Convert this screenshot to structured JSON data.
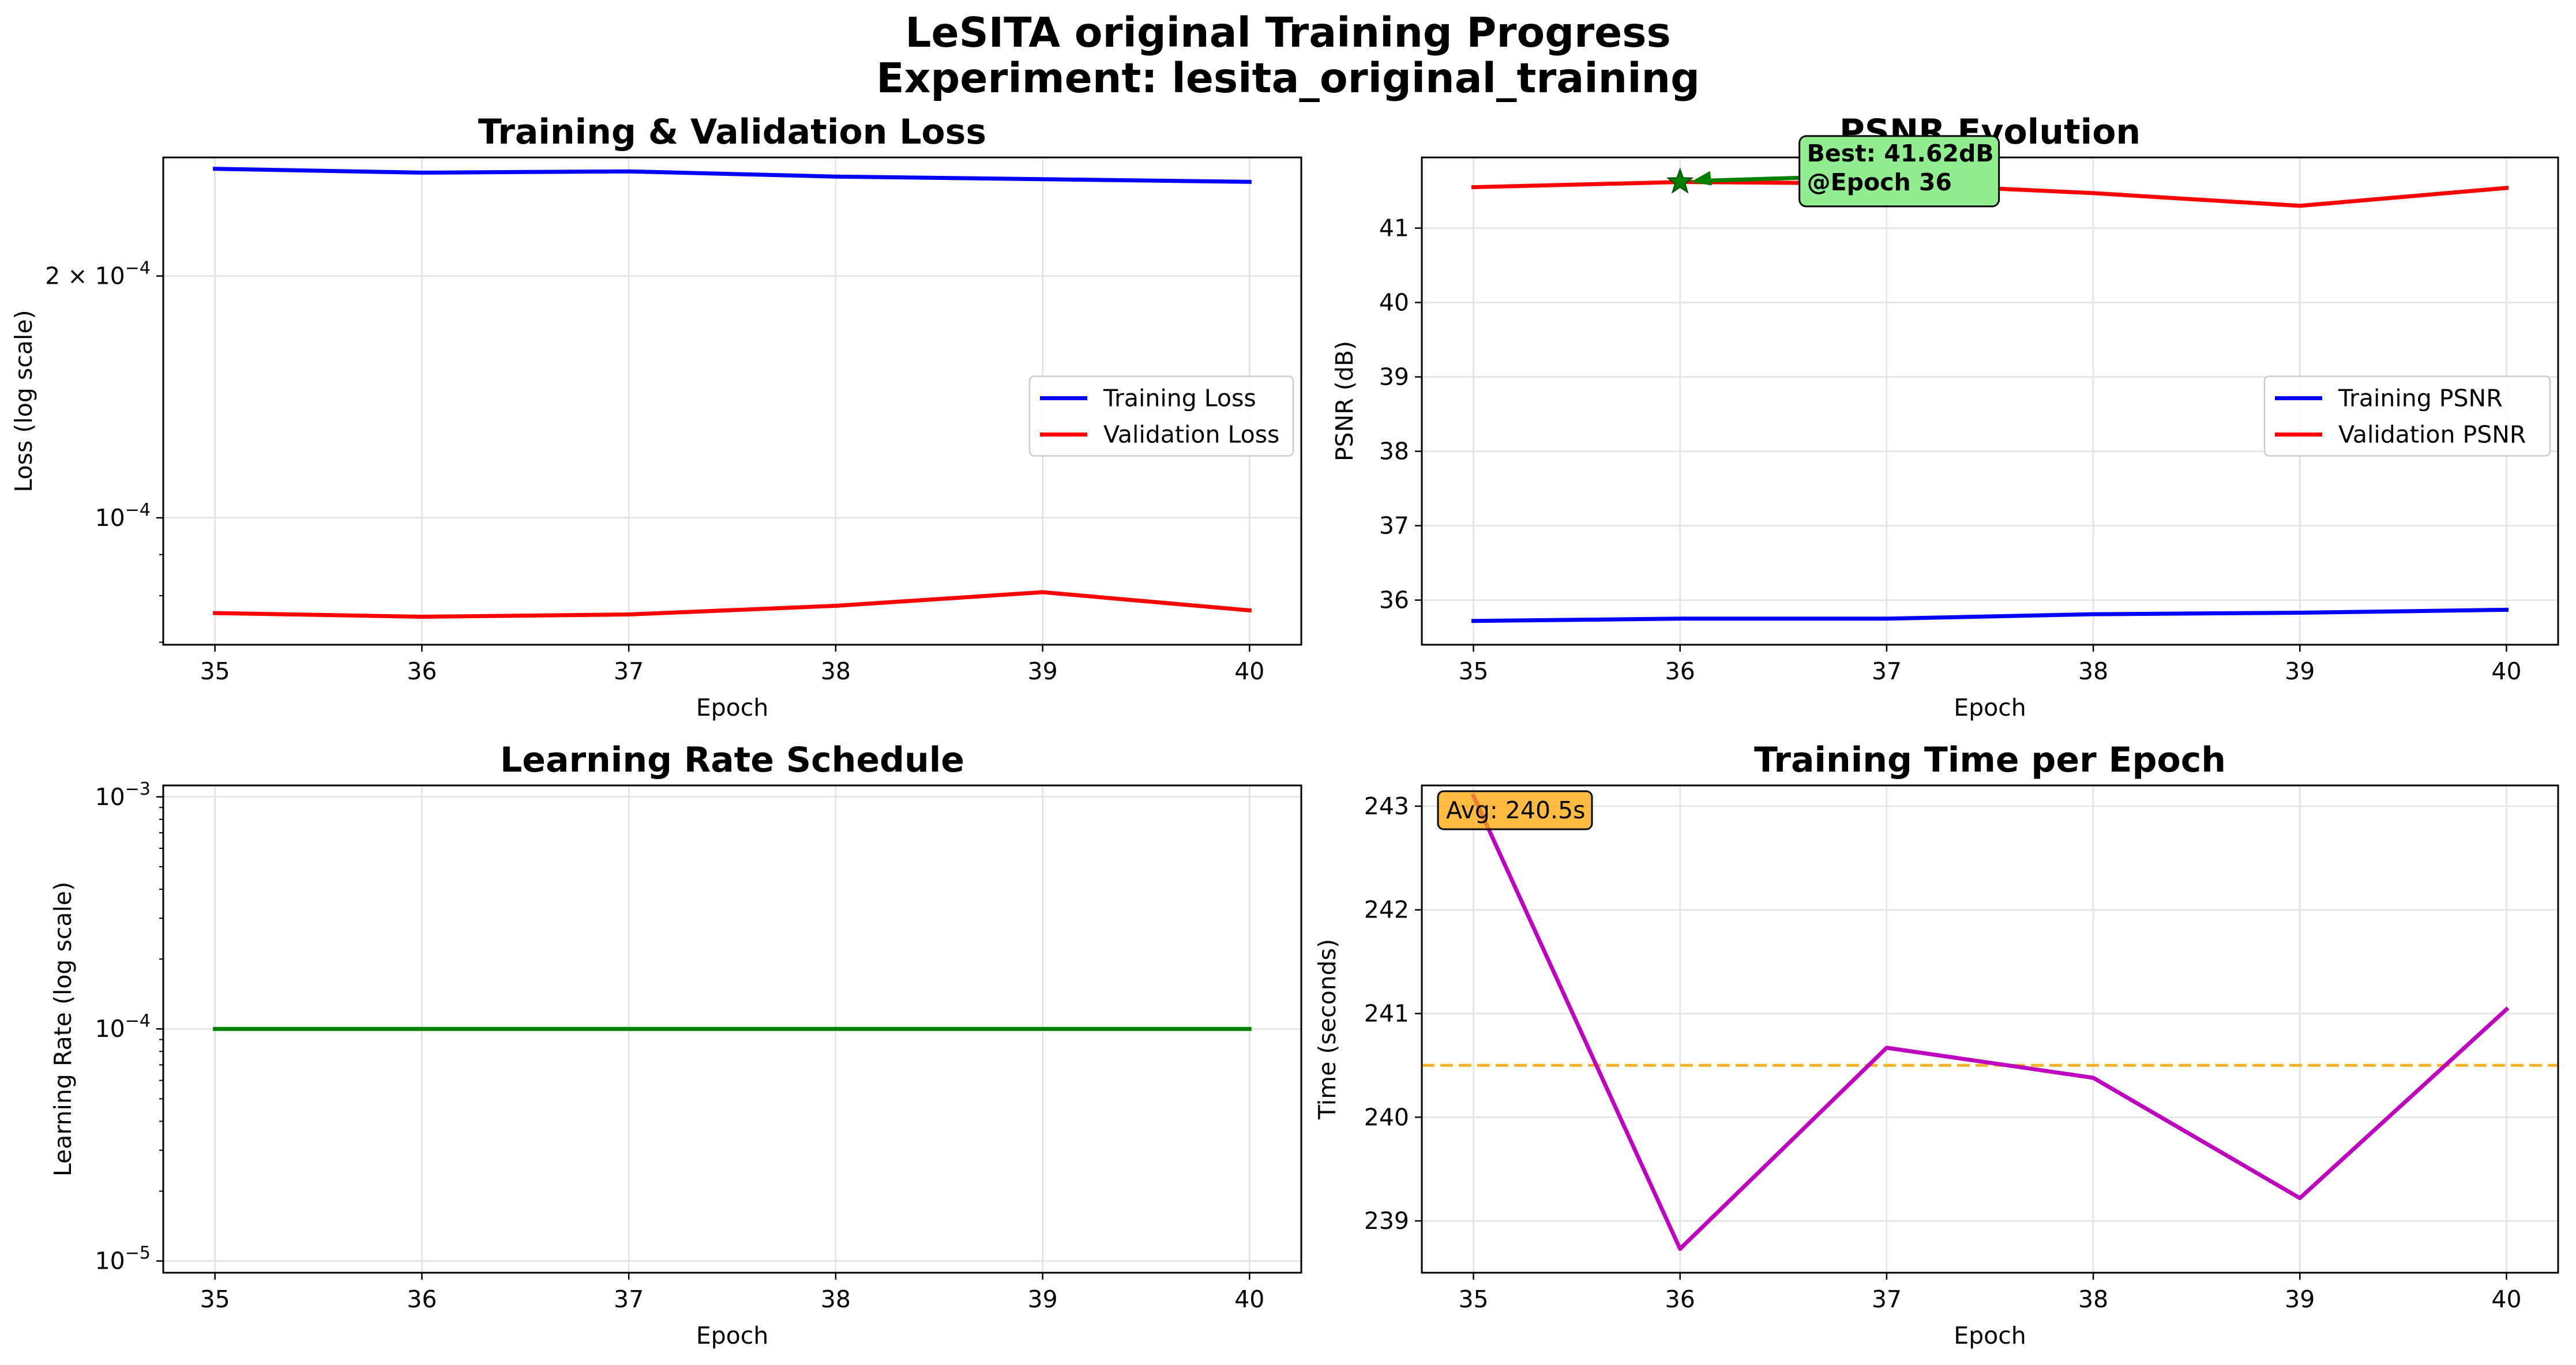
{
  "suptitle": [
    "LeSITA original Training Progress",
    "Experiment: lesita_original_training"
  ],
  "chart_data": [
    {
      "id": "loss",
      "type": "line",
      "title": "Training & Validation Loss",
      "xlabel": "Epoch",
      "ylabel": "Loss (log scale)",
      "yscale": "log",
      "xlim": [
        34.75,
        40.25
      ],
      "ylim": [
        6.95e-05,
        0.000281
      ],
      "grid": true,
      "legend": "center-right",
      "x": [
        35,
        36,
        37,
        38,
        39,
        40
      ],
      "xticks": [
        {
          "v": 35,
          "label": "35"
        },
        {
          "v": 36,
          "label": "36"
        },
        {
          "v": 37,
          "label": "37"
        },
        {
          "v": 38,
          "label": "38"
        },
        {
          "v": 39,
          "label": "39"
        },
        {
          "v": 40,
          "label": "40"
        }
      ],
      "yticks": [
        {
          "v": 0.0002,
          "base": "2 × 10",
          "exp": "−4"
        },
        {
          "v": 0.0001,
          "base": "10",
          "exp": "−4"
        }
      ],
      "yminor": [
        7e-05,
        8e-05,
        9e-05,
        0.0003
      ],
      "series": [
        {
          "name": "Training Loss",
          "color": "#0000ff",
          "values": [
            0.000272,
            0.000269,
            0.00027,
            0.000266,
            0.000264,
            0.000262
          ]
        },
        {
          "name": "Validation Loss",
          "color": "#ff0000",
          "values": [
            7.61e-05,
            7.53e-05,
            7.58e-05,
            7.77e-05,
            8.08e-05,
            7.67e-05
          ]
        }
      ]
    },
    {
      "id": "psnr",
      "type": "line",
      "title": "PSNR Evolution",
      "xlabel": "Epoch",
      "ylabel": "PSNR (dB)",
      "yscale": "linear",
      "xlim": [
        34.75,
        40.25
      ],
      "ylim": [
        35.4,
        41.95
      ],
      "grid": true,
      "legend": "center-right",
      "x": [
        35,
        36,
        37,
        38,
        39,
        40
      ],
      "xticks": [
        {
          "v": 35,
          "label": "35"
        },
        {
          "v": 36,
          "label": "36"
        },
        {
          "v": 37,
          "label": "37"
        },
        {
          "v": 38,
          "label": "38"
        },
        {
          "v": 39,
          "label": "39"
        },
        {
          "v": 40,
          "label": "40"
        }
      ],
      "yticks": [
        {
          "v": 36,
          "label": "36"
        },
        {
          "v": 37,
          "label": "37"
        },
        {
          "v": 38,
          "label": "38"
        },
        {
          "v": 39,
          "label": "39"
        },
        {
          "v": 40,
          "label": "40"
        },
        {
          "v": 41,
          "label": "41"
        }
      ],
      "series": [
        {
          "name": "Training PSNR",
          "color": "#0000ff",
          "values": [
            35.72,
            35.75,
            35.75,
            35.81,
            35.83,
            35.87
          ]
        },
        {
          "name": "Validation PSNR",
          "color": "#ff0000",
          "values": [
            41.55,
            41.62,
            41.6,
            41.47,
            41.3,
            41.54
          ]
        }
      ],
      "annotation": {
        "lines": [
          "Best: 41.62dB",
          "@Epoch 36"
        ],
        "point": {
          "x": 36,
          "y": 41.62
        },
        "text_at": {
          "x": 36.6,
          "y": 41.85
        },
        "marker_color": "#008000",
        "box_color": "#90ee90"
      }
    },
    {
      "id": "lr",
      "type": "line",
      "title": "Learning Rate Schedule",
      "xlabel": "Epoch",
      "ylabel": "Learning Rate (log scale)",
      "yscale": "log",
      "xlim": [
        34.75,
        40.25
      ],
      "ylim": [
        8.9e-06,
        0.00112
      ],
      "grid": true,
      "x": [
        35,
        36,
        37,
        38,
        39,
        40
      ],
      "xticks": [
        {
          "v": 35,
          "label": "35"
        },
        {
          "v": 36,
          "label": "36"
        },
        {
          "v": 37,
          "label": "37"
        },
        {
          "v": 38,
          "label": "38"
        },
        {
          "v": 39,
          "label": "39"
        },
        {
          "v": 40,
          "label": "40"
        }
      ],
      "yticks": [
        {
          "v": 0.001,
          "base": "10",
          "exp": "−3"
        },
        {
          "v": 0.0001,
          "base": "10",
          "exp": "−4"
        },
        {
          "v": 1e-05,
          "base": "10",
          "exp": "−5"
        }
      ],
      "yminor": [
        2e-05,
        3e-05,
        4e-05,
        5e-05,
        6e-05,
        7e-05,
        8e-05,
        9e-05,
        0.0002,
        0.0003,
        0.0004,
        0.0005,
        0.0006,
        0.0007,
        0.0008,
        0.0009
      ],
      "series": [
        {
          "color": "#008000",
          "values": [
            0.0001,
            0.0001,
            0.0001,
            0.0001,
            0.0001,
            0.0001
          ]
        }
      ]
    },
    {
      "id": "time",
      "type": "line",
      "title": "Training Time per Epoch",
      "xlabel": "Epoch",
      "ylabel": "Time (seconds)",
      "yscale": "linear",
      "xlim": [
        34.75,
        40.25
      ],
      "ylim": [
        238.5,
        243.2
      ],
      "grid": true,
      "x": [
        35,
        36,
        37,
        38,
        39,
        40
      ],
      "xticks": [
        {
          "v": 35,
          "label": "35"
        },
        {
          "v": 36,
          "label": "36"
        },
        {
          "v": 37,
          "label": "37"
        },
        {
          "v": 38,
          "label": "38"
        },
        {
          "v": 39,
          "label": "39"
        },
        {
          "v": 40,
          "label": "40"
        }
      ],
      "yticks": [
        {
          "v": 239,
          "label": "239"
        },
        {
          "v": 240,
          "label": "240"
        },
        {
          "v": 241,
          "label": "241"
        },
        {
          "v": 242,
          "label": "242"
        },
        {
          "v": 243,
          "label": "243"
        }
      ],
      "series": [
        {
          "color": "#bf00bf",
          "values": [
            243.1,
            238.73,
            240.67,
            240.38,
            239.22,
            241.04
          ]
        }
      ],
      "hline": {
        "value": 240.5,
        "color": "#ffa500"
      },
      "annotation": {
        "lines": [
          "Avg: 240.5s"
        ],
        "box_color": "#ffa500",
        "position": "top-left"
      }
    }
  ]
}
